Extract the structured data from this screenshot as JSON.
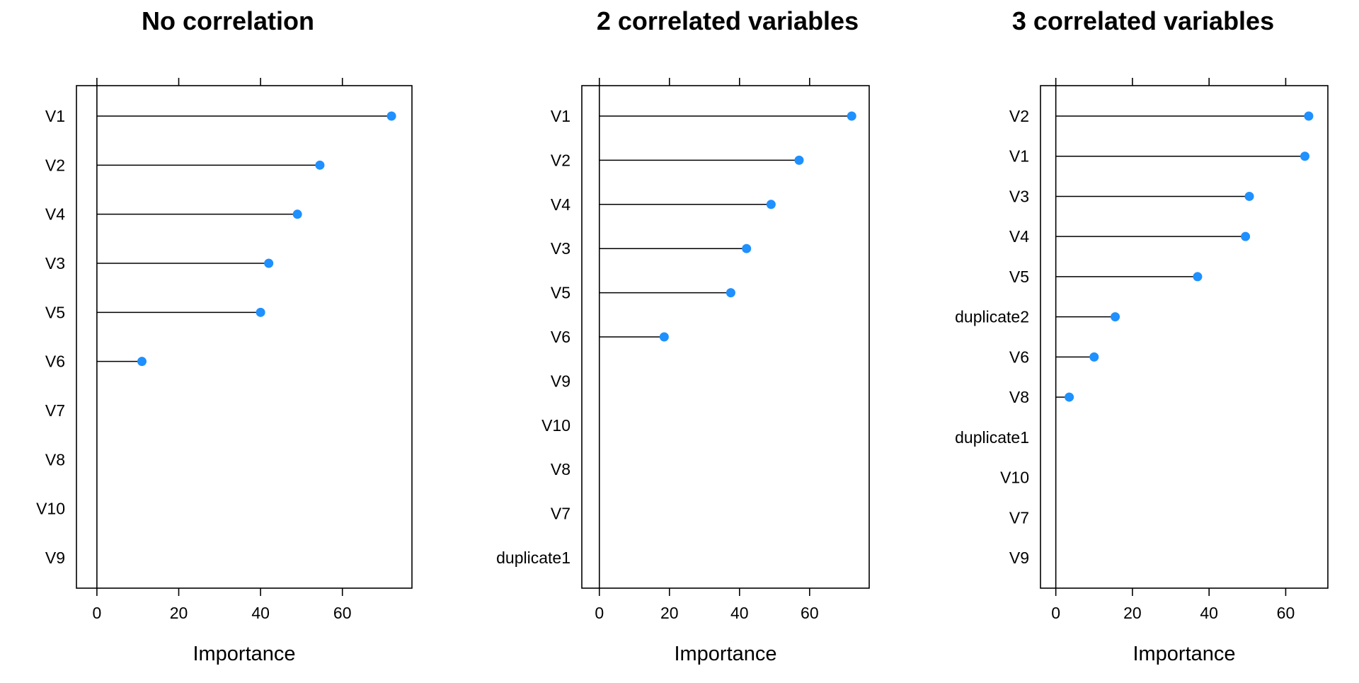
{
  "colors": {
    "point": "#1E90FF",
    "line": "#000000",
    "background": "#FFFFFF"
  },
  "chart_data": [
    {
      "type": "lollipop",
      "title": "No correlation",
      "xlabel": "Importance",
      "ylabel": "",
      "xlim": [
        -5,
        77
      ],
      "xticks": [
        0,
        20,
        40,
        60
      ],
      "categories": [
        "V1",
        "V2",
        "V4",
        "V3",
        "V5",
        "V6",
        "V7",
        "V8",
        "V10",
        "V9"
      ],
      "values": [
        72,
        54.5,
        49,
        42,
        40,
        11,
        0,
        0,
        0,
        0
      ]
    },
    {
      "type": "lollipop",
      "title": "2 correlated variables",
      "xlabel": "Importance",
      "ylabel": "",
      "xlim": [
        -5,
        77
      ],
      "xticks": [
        0,
        20,
        40,
        60
      ],
      "categories": [
        "V1",
        "V2",
        "V4",
        "V3",
        "V5",
        "V6",
        "V9",
        "V10",
        "V8",
        "V7",
        "duplicate1"
      ],
      "values": [
        72,
        57,
        49,
        42,
        37.5,
        18.5,
        0,
        0,
        0,
        0,
        0
      ]
    },
    {
      "type": "lollipop",
      "title": "3 correlated variables",
      "xlabel": "Importance",
      "ylabel": "",
      "xlim": [
        -4,
        71
      ],
      "xticks": [
        0,
        20,
        40,
        60
      ],
      "categories": [
        "V2",
        "V1",
        "V3",
        "V4",
        "V5",
        "duplicate2",
        "V6",
        "V8",
        "duplicate1",
        "V10",
        "V7",
        "V9"
      ],
      "values": [
        66,
        65,
        50.5,
        49.5,
        37,
        15.5,
        10,
        3.5,
        0,
        0,
        0,
        0
      ]
    }
  ]
}
